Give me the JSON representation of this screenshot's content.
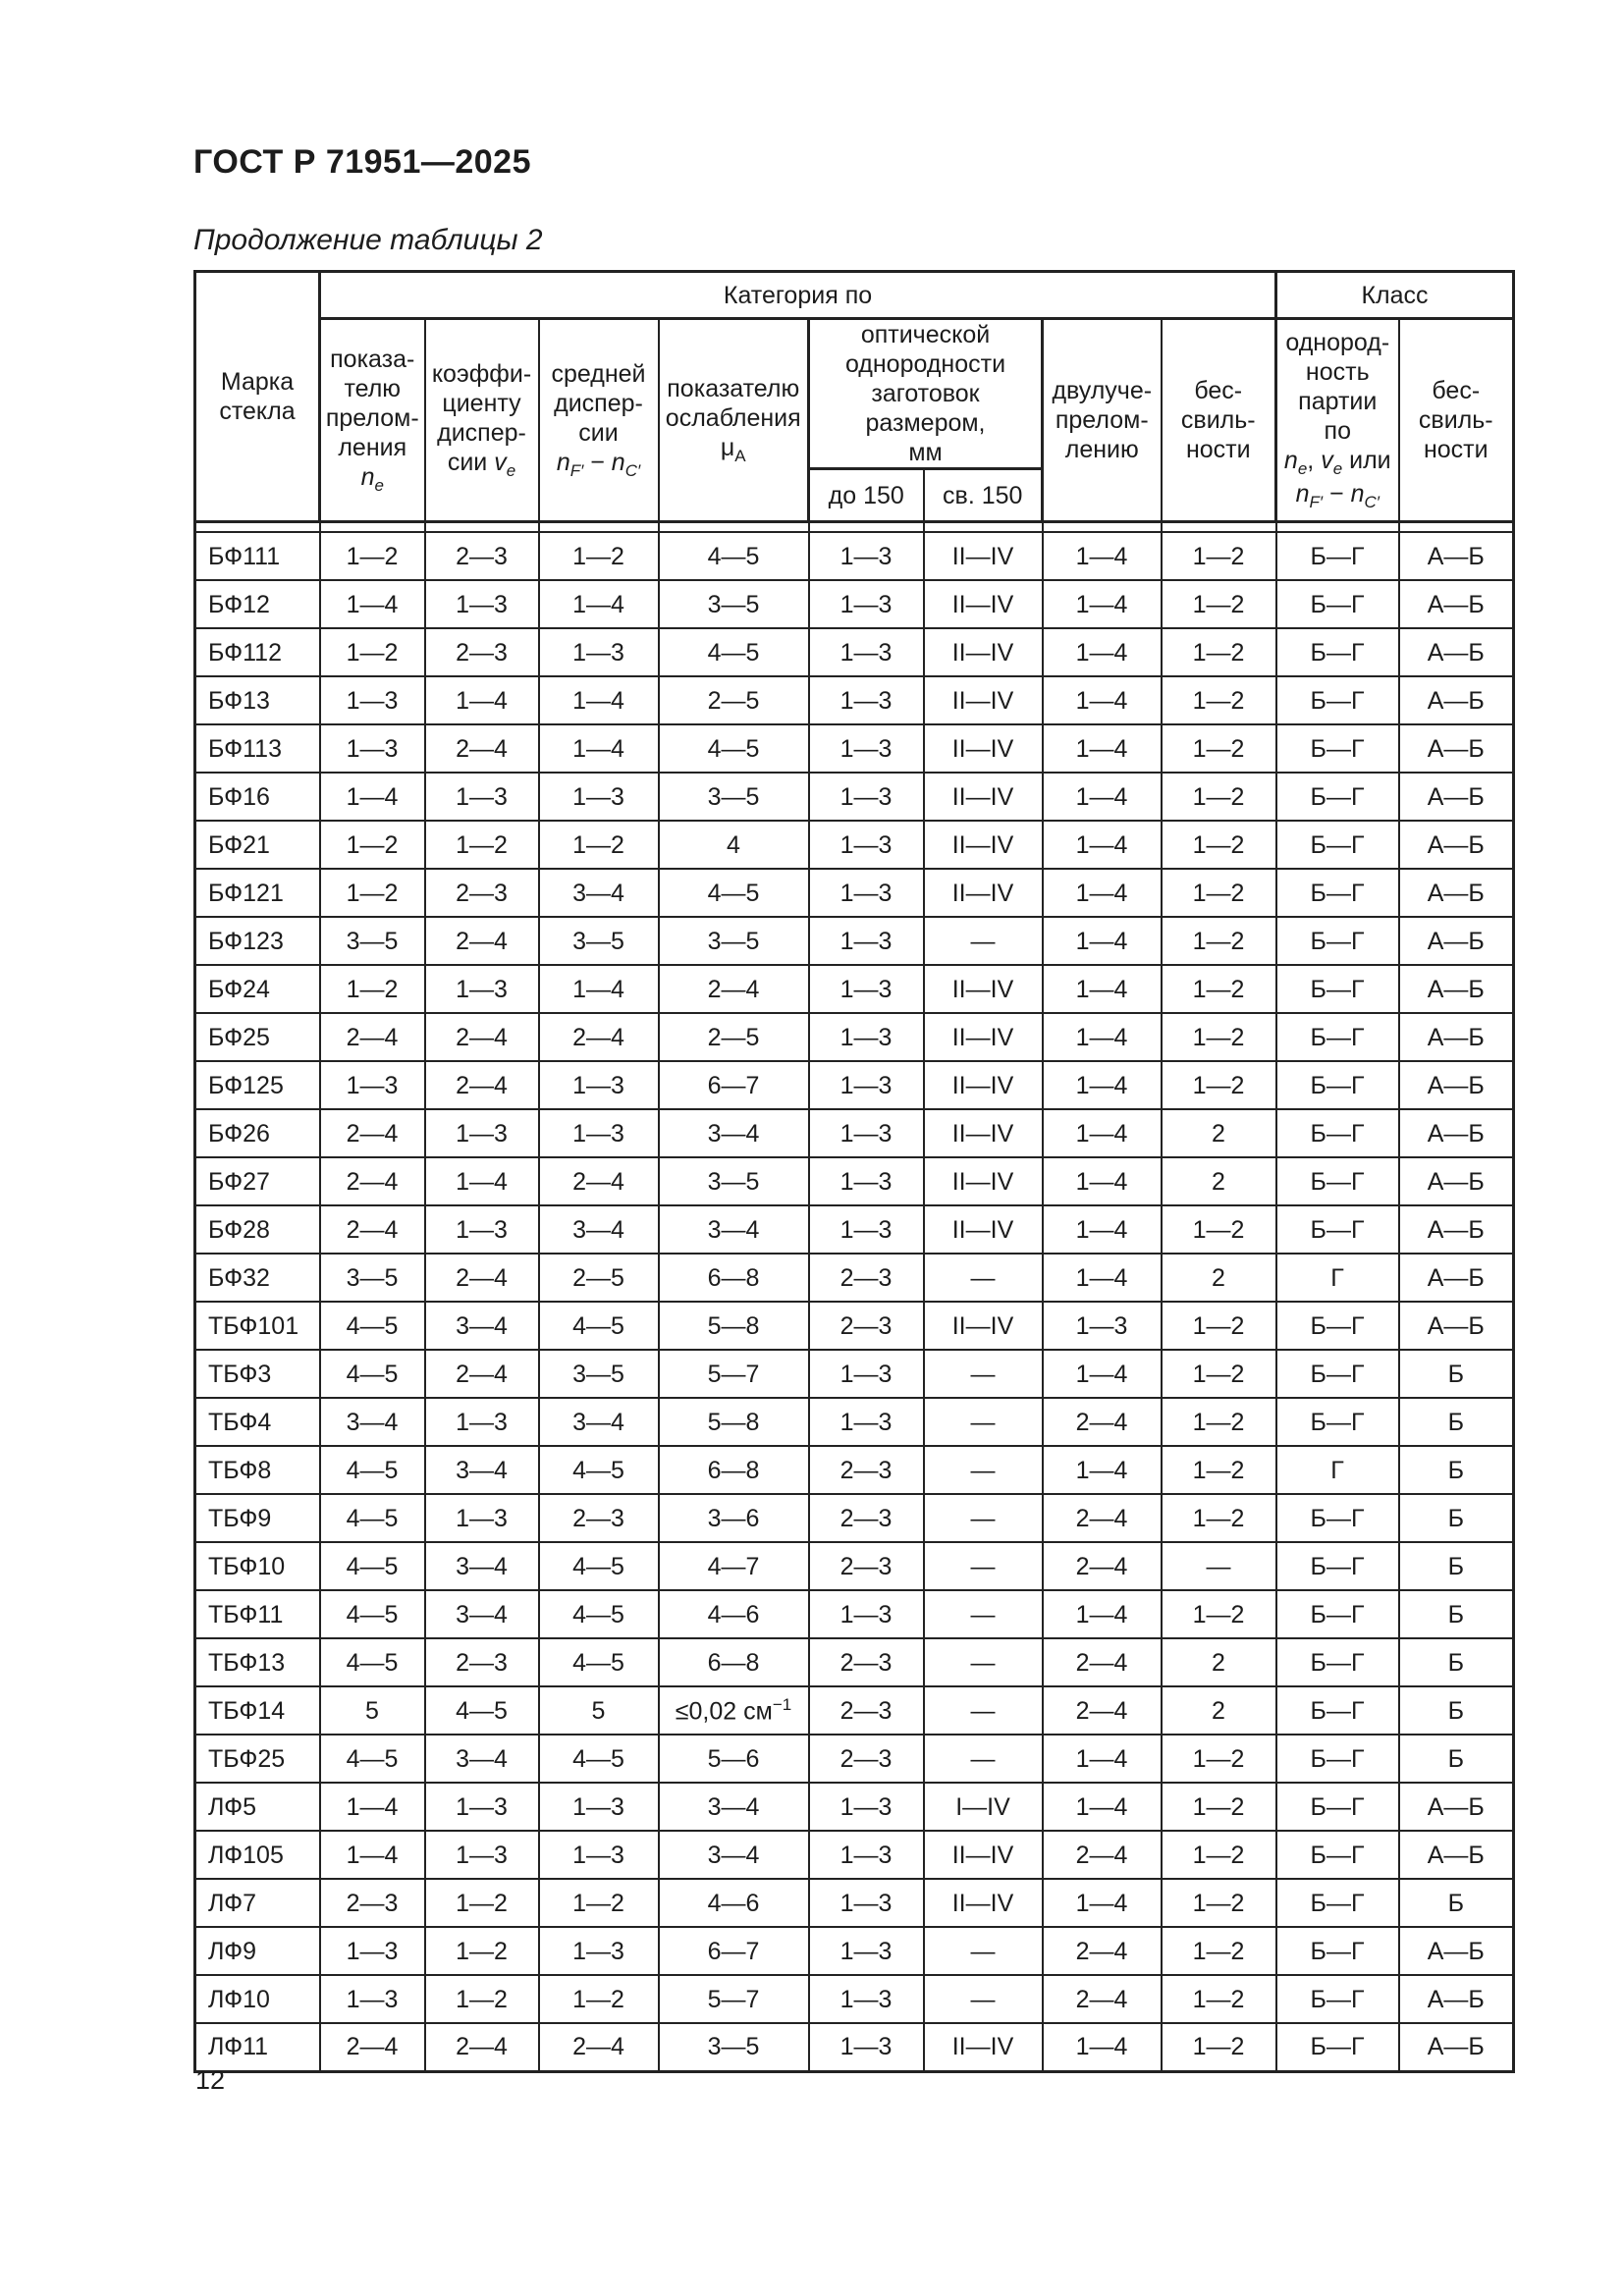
{
  "page": {
    "standard": "ГОСТ Р 71951—2025",
    "table_caption": "Продолжение таблицы 2",
    "page_number": "12"
  },
  "table": {
    "groups": {
      "category": "Категория по",
      "class": "Класс"
    },
    "headers": {
      "mark": "Марка<br>стекла",
      "refractive_index": "показа-<br>телю<br>прелом-<br>ления <i>n<sub>e</sub></i>",
      "dispersion_coefficient": "коэффи-<br>циенту<br>диспер-<br>сии <i>v<sub>e</sub></i>",
      "mean_dispersion": "средней<br>диспер-<br>сии<br><i>n<sub>F′</sub></i> − <i>n<sub>C′</sub></i>",
      "attenuation_index": "показателю<br>ослабления<br>μ<sub>А</sub>",
      "optical_homogeneity_group": "оптической<br>однородности<br>заготовок размером,<br>мм",
      "size_upto_150": "до 150",
      "size_over_150": "св. 150",
      "birefringence": "двулуче-<br>прелом-<br>лению",
      "striae_category": "бес-<br>свиль-<br>ности",
      "batch_homogeneity_class": "однород-<br>ность<br>партии по<br><i>n<sub>e</sub></i>, <i>v<sub>e</sub></i> или<br><i>n<sub>F′</sub></i> − <i>n<sub>C′</sub></i>",
      "striae_class": "бес-<br>свиль-<br>ности"
    },
    "rows": [
      {
        "mark": "БФ111",
        "values": [
          "1—2",
          "2—3",
          "1—2",
          "4—5",
          "1—3",
          "II—IV",
          "1—4",
          "1—2",
          "Б—Г",
          "А—Б"
        ]
      },
      {
        "mark": "БФ12",
        "values": [
          "1—4",
          "1—3",
          "1—4",
          "3—5",
          "1—3",
          "II—IV",
          "1—4",
          "1—2",
          "Б—Г",
          "А—Б"
        ]
      },
      {
        "mark": "БФ112",
        "values": [
          "1—2",
          "2—3",
          "1—3",
          "4—5",
          "1—3",
          "II—IV",
          "1—4",
          "1—2",
          "Б—Г",
          "А—Б"
        ]
      },
      {
        "mark": "БФ13",
        "values": [
          "1—3",
          "1—4",
          "1—4",
          "2—5",
          "1—3",
          "II—IV",
          "1—4",
          "1—2",
          "Б—Г",
          "А—Б"
        ]
      },
      {
        "mark": "БФ113",
        "values": [
          "1—3",
          "2—4",
          "1—4",
          "4—5",
          "1—3",
          "II—IV",
          "1—4",
          "1—2",
          "Б—Г",
          "А—Б"
        ]
      },
      {
        "mark": "БФ16",
        "values": [
          "1—4",
          "1—3",
          "1—3",
          "3—5",
          "1—3",
          "II—IV",
          "1—4",
          "1—2",
          "Б—Г",
          "А—Б"
        ]
      },
      {
        "mark": "БФ21",
        "values": [
          "1—2",
          "1—2",
          "1—2",
          "4",
          "1—3",
          "II—IV",
          "1—4",
          "1—2",
          "Б—Г",
          "А—Б"
        ]
      },
      {
        "mark": "БФ121",
        "values": [
          "1—2",
          "2—3",
          "3—4",
          "4—5",
          "1—3",
          "II—IV",
          "1—4",
          "1—2",
          "Б—Г",
          "А—Б"
        ]
      },
      {
        "mark": "БФ123",
        "values": [
          "3—5",
          "2—4",
          "3—5",
          "3—5",
          "1—3",
          "—",
          "1—4",
          "1—2",
          "Б—Г",
          "А—Б"
        ]
      },
      {
        "mark": "БФ24",
        "values": [
          "1—2",
          "1—3",
          "1—4",
          "2—4",
          "1—3",
          "II—IV",
          "1—4",
          "1—2",
          "Б—Г",
          "А—Б"
        ]
      },
      {
        "mark": "БФ25",
        "values": [
          "2—4",
          "2—4",
          "2—4",
          "2—5",
          "1—3",
          "II—IV",
          "1—4",
          "1—2",
          "Б—Г",
          "А—Б"
        ]
      },
      {
        "mark": "БФ125",
        "values": [
          "1—3",
          "2—4",
          "1—3",
          "6—7",
          "1—3",
          "II—IV",
          "1—4",
          "1—2",
          "Б—Г",
          "А—Б"
        ]
      },
      {
        "mark": "БФ26",
        "values": [
          "2—4",
          "1—3",
          "1—3",
          "3—4",
          "1—3",
          "II—IV",
          "1—4",
          "2",
          "Б—Г",
          "А—Б"
        ]
      },
      {
        "mark": "БФ27",
        "values": [
          "2—4",
          "1—4",
          "2—4",
          "3—5",
          "1—3",
          "II—IV",
          "1—4",
          "2",
          "Б—Г",
          "А—Б"
        ]
      },
      {
        "mark": "БФ28",
        "values": [
          "2—4",
          "1—3",
          "3—4",
          "3—4",
          "1—3",
          "II—IV",
          "1—4",
          "1—2",
          "Б—Г",
          "А—Б"
        ]
      },
      {
        "mark": "БФ32",
        "values": [
          "3—5",
          "2—4",
          "2—5",
          "6—8",
          "2—3",
          "—",
          "1—4",
          "2",
          "Г",
          "А—Б"
        ]
      },
      {
        "mark": "ТБФ101",
        "values": [
          "4—5",
          "3—4",
          "4—5",
          "5—8",
          "2—3",
          "II—IV",
          "1—3",
          "1—2",
          "Б—Г",
          "А—Б"
        ]
      },
      {
        "mark": "ТБФ3",
        "values": [
          "4—5",
          "2—4",
          "3—5",
          "5—7",
          "1—3",
          "—",
          "1—4",
          "1—2",
          "Б—Г",
          "Б"
        ]
      },
      {
        "mark": "ТБФ4",
        "values": [
          "3—4",
          "1—3",
          "3—4",
          "5—8",
          "1—3",
          "—",
          "2—4",
          "1—2",
          "Б—Г",
          "Б"
        ]
      },
      {
        "mark": "ТБФ8",
        "values": [
          "4—5",
          "3—4",
          "4—5",
          "6—8",
          "2—3",
          "—",
          "1—4",
          "1—2",
          "Г",
          "Б"
        ]
      },
      {
        "mark": "ТБФ9",
        "values": [
          "4—5",
          "1—3",
          "2—3",
          "3—6",
          "2—3",
          "—",
          "2—4",
          "1—2",
          "Б—Г",
          "Б"
        ]
      },
      {
        "mark": "ТБФ10",
        "values": [
          "4—5",
          "3—4",
          "4—5",
          "4—7",
          "2—3",
          "—",
          "2—4",
          "—",
          "Б—Г",
          "Б"
        ]
      },
      {
        "mark": "ТБФ11",
        "values": [
          "4—5",
          "3—4",
          "4—5",
          "4—6",
          "1—3",
          "—",
          "1—4",
          "1—2",
          "Б—Г",
          "Б"
        ]
      },
      {
        "mark": "ТБФ13",
        "values": [
          "4—5",
          "2—3",
          "4—5",
          "6—8",
          "2—3",
          "—",
          "2—4",
          "2",
          "Б—Г",
          "Б"
        ]
      },
      {
        "mark": "ТБФ14",
        "values": [
          "5",
          "4—5",
          "5",
          "≤0,02 см<sup>−1</sup>",
          "2—3",
          "—",
          "2—4",
          "2",
          "Б—Г",
          "Б"
        ]
      },
      {
        "mark": "ТБФ25",
        "values": [
          "4—5",
          "3—4",
          "4—5",
          "5—6",
          "2—3",
          "—",
          "1—4",
          "1—2",
          "Б—Г",
          "Б"
        ]
      },
      {
        "mark": "ЛФ5",
        "values": [
          "1—4",
          "1—3",
          "1—3",
          "3—4",
          "1—3",
          "I—IV",
          "1—4",
          "1—2",
          "Б—Г",
          "А—Б"
        ]
      },
      {
        "mark": "ЛФ105",
        "values": [
          "1—4",
          "1—3",
          "1—3",
          "3—4",
          "1—3",
          "II—IV",
          "2—4",
          "1—2",
          "Б—Г",
          "А—Б"
        ]
      },
      {
        "mark": "ЛФ7",
        "values": [
          "2—3",
          "1—2",
          "1—2",
          "4—6",
          "1—3",
          "II—IV",
          "1—4",
          "1—2",
          "Б—Г",
          "Б"
        ]
      },
      {
        "mark": "ЛФ9",
        "values": [
          "1—3",
          "1—2",
          "1—3",
          "6—7",
          "1—3",
          "—",
          "2—4",
          "1—2",
          "Б—Г",
          "А—Б"
        ]
      },
      {
        "mark": "ЛФ10",
        "values": [
          "1—3",
          "1—2",
          "1—2",
          "5—7",
          "1—3",
          "—",
          "2—4",
          "1—2",
          "Б—Г",
          "А—Б"
        ]
      },
      {
        "mark": "ЛФ11",
        "values": [
          "2—4",
          "2—4",
          "2—4",
          "3—5",
          "1—3",
          "II—IV",
          "1—4",
          "1—2",
          "Б—Г",
          "А—Б"
        ]
      }
    ]
  }
}
